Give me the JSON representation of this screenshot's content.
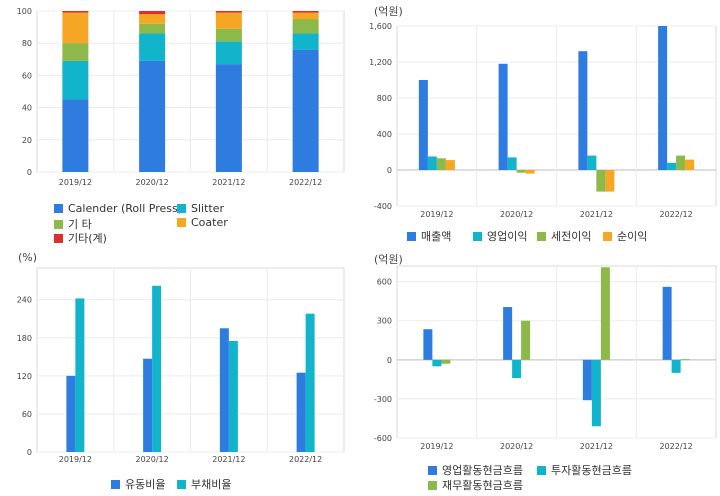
{
  "chart_data": [
    {
      "id": "sales-composition",
      "type": "bar",
      "stacked": true,
      "categories": [
        "2019/12",
        "2020/12",
        "2021/12",
        "2022/12"
      ],
      "ylim": [
        0,
        100
      ],
      "yticks": [
        0,
        20,
        40,
        60,
        80,
        100
      ],
      "grid": true,
      "legend_position": "bottom-left",
      "series": [
        {
          "name": "Calender (Roll Press)",
          "color": "#2f7ce0",
          "values": [
            45,
            69,
            67,
            76
          ]
        },
        {
          "name": "Slitter",
          "color": "#12b4cc",
          "values": [
            24,
            17,
            14,
            10
          ]
        },
        {
          "name": "기 타",
          "color": "#8db84a",
          "values": [
            11,
            6,
            8,
            9
          ]
        },
        {
          "name": "Coater",
          "color": "#f5a623",
          "values": [
            19,
            6,
            10,
            4
          ]
        },
        {
          "name": "기타(계)",
          "color": "#d8322a",
          "values": [
            1,
            2,
            1,
            1
          ]
        }
      ]
    },
    {
      "id": "profit",
      "type": "bar",
      "unit": "(억원)",
      "categories": [
        "2019/12",
        "2020/12",
        "2021/12",
        "2022/12"
      ],
      "ylim": [
        -400,
        1600
      ],
      "yticks": [
        -400,
        0,
        400,
        800,
        1200,
        1600
      ],
      "ytick_labels": [
        "-400",
        "0",
        "400",
        "800",
        "1,200",
        "1,600"
      ],
      "grid": true,
      "legend_position": "bottom",
      "series": [
        {
          "name": "매출액",
          "color": "#2f7ce0",
          "values": [
            1000,
            1180,
            1320,
            1600
          ]
        },
        {
          "name": "영업이익",
          "color": "#12b4cc",
          "values": [
            150,
            140,
            160,
            80
          ]
        },
        {
          "name": "세전이익",
          "color": "#8db84a",
          "values": [
            130,
            -30,
            -240,
            160
          ]
        },
        {
          "name": "순이익",
          "color": "#f5a623",
          "values": [
            110,
            -40,
            -240,
            115
          ]
        }
      ]
    },
    {
      "id": "ratios",
      "type": "bar",
      "unit": "(%)",
      "categories": [
        "2019/12",
        "2020/12",
        "2021/12",
        "2022/12"
      ],
      "ylim": [
        0,
        290
      ],
      "yticks": [
        0,
        60,
        120,
        180,
        240
      ],
      "grid": true,
      "legend_position": "bottom",
      "series": [
        {
          "name": "유동비율",
          "color": "#2f7ce0",
          "values": [
            120,
            147,
            195,
            125
          ]
        },
        {
          "name": "부채비율",
          "color": "#12b4cc",
          "values": [
            242,
            262,
            175,
            218
          ]
        }
      ]
    },
    {
      "id": "cashflow",
      "type": "bar",
      "unit": "(억원)",
      "categories": [
        "2019/12",
        "2020/12",
        "2021/12",
        "2022/12"
      ],
      "ylim": [
        -600,
        720
      ],
      "yticks": [
        -600,
        -300,
        0,
        300,
        600
      ],
      "grid": true,
      "legend_position": "bottom",
      "series": [
        {
          "name": "영업활동현금흐름",
          "color": "#2f7ce0",
          "values": [
            235,
            405,
            -310,
            560
          ]
        },
        {
          "name": "투자활동현금흐름",
          "color": "#12b4cc",
          "values": [
            -50,
            -140,
            -510,
            -100
          ]
        },
        {
          "name": "재무활동현금흐름",
          "color": "#8db84a",
          "values": [
            -30,
            300,
            710,
            5
          ]
        }
      ]
    }
  ]
}
